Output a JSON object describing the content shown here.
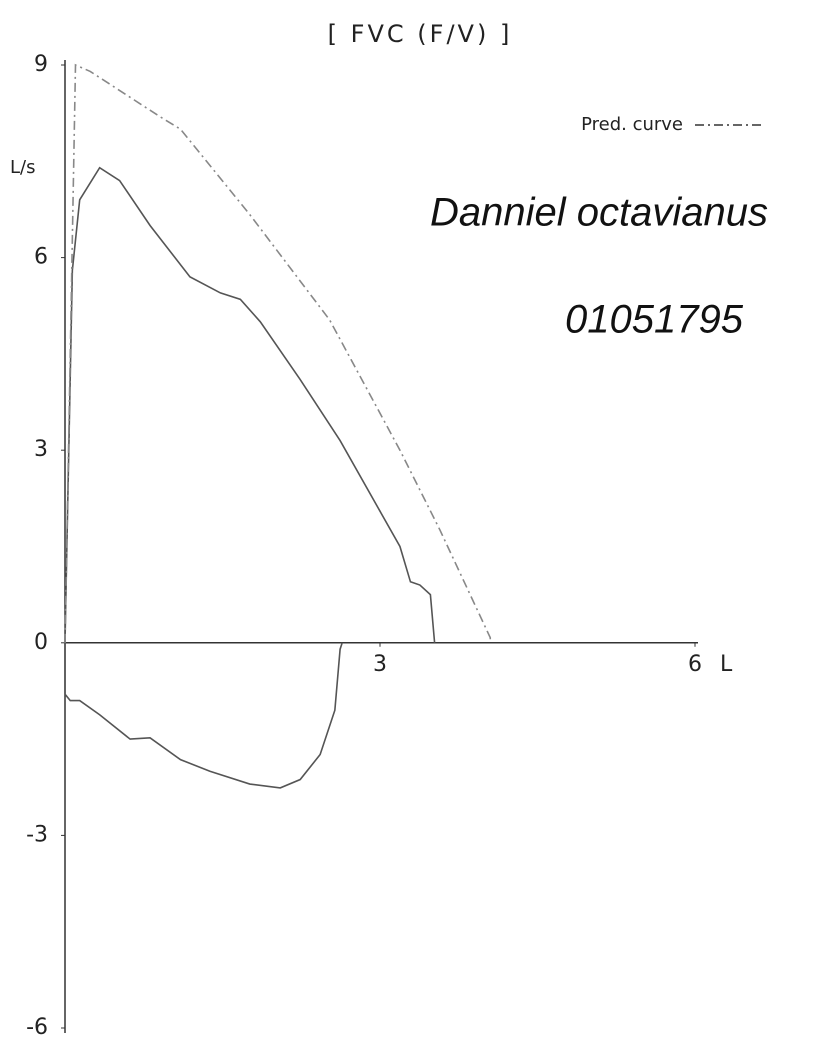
{
  "chart_data": {
    "type": "line",
    "title": "[ FVC (F/V) ]",
    "ylabel": "L/s",
    "xlabel": "L",
    "xlim": [
      0,
      6
    ],
    "xticks": [
      3,
      6
    ],
    "ylim": [
      -6,
      9
    ],
    "yticks": [
      -6,
      -3,
      0,
      3,
      6,
      9
    ],
    "annotations": [
      "Danniel octavianus",
      "01051795"
    ],
    "series": [
      {
        "color": "#555555",
        "x": [
          0,
          0.03,
          0.07,
          0.14,
          0.33,
          0.52,
          0.81,
          1.19,
          1.48,
          1.67,
          1.86,
          2.24,
          2.62,
          3.0,
          3.19,
          3.29,
          3.38,
          3.48,
          3.52
        ],
        "values": [
          0,
          2.5,
          5.8,
          6.9,
          7.4,
          7.2,
          6.5,
          5.7,
          5.45,
          5.35,
          5.0,
          4.1,
          3.15,
          2.05,
          1.5,
          0.95,
          0.9,
          0.75,
          0
        ]
      },
      {
        "color": "#555555",
        "x": [
          0,
          0,
          0.05,
          0.14,
          0.33,
          0.62,
          0.81,
          1.1,
          1.38,
          1.76,
          2.05,
          2.24,
          2.43,
          2.57,
          2.62,
          2.64
        ],
        "values": [
          0,
          -0.8,
          -0.9,
          -0.9,
          -1.12,
          -1.5,
          -1.48,
          -1.82,
          -2.0,
          -2.2,
          -2.26,
          -2.13,
          -1.74,
          -1.05,
          -0.1,
          0
        ]
      },
      {
        "name": "Pred. curve",
        "color": "#888888",
        "dash": "9,4,2,4",
        "x": [
          0,
          0.1,
          0.24,
          0.9,
          1.1,
          1.76,
          2.52,
          3.19,
          3.57,
          4.05,
          4.05
        ],
        "values": [
          0,
          9.0,
          8.9,
          8.2,
          8.0,
          6.67,
          5.03,
          3.0,
          1.76,
          0.08,
          0
        ]
      }
    ]
  }
}
